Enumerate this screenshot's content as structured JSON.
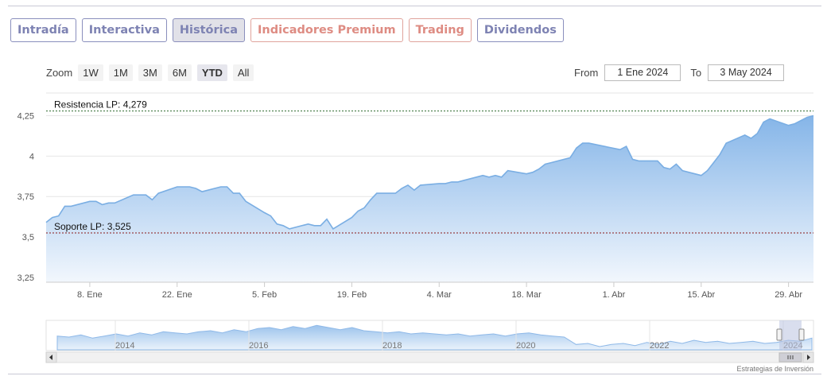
{
  "tabs": [
    {
      "label": "Intradía",
      "variant": "normal"
    },
    {
      "label": "Interactiva",
      "variant": "normal"
    },
    {
      "label": "Histórica",
      "variant": "active"
    },
    {
      "label": "Indicadores Premium",
      "variant": "premium"
    },
    {
      "label": "Trading",
      "variant": "premium"
    },
    {
      "label": "Dividendos",
      "variant": "normal"
    }
  ],
  "zoom": {
    "label": "Zoom",
    "buttons": [
      "1W",
      "1M",
      "3M",
      "6M",
      "YTD",
      "All"
    ],
    "selected": "YTD"
  },
  "range": {
    "from_label": "From",
    "from_value": "1 Ene 2024",
    "to_label": "To",
    "to_value": "3 May 2024"
  },
  "credit": "Estrategias de Inversión",
  "chart_data": {
    "type": "area",
    "ylim": [
      3.22,
      4.39
    ],
    "yticks": [
      {
        "v": 3.25,
        "label": "3,25"
      },
      {
        "v": 3.5,
        "label": "3,5"
      },
      {
        "v": 3.75,
        "label": "3,75"
      },
      {
        "v": 4,
        "label": "4"
      },
      {
        "v": 4.25,
        "label": "4,25"
      }
    ],
    "xlim": [
      "2024-01-01",
      "2024-05-03"
    ],
    "xticks": [
      {
        "date": "2024-01-08",
        "label": "8. Ene"
      },
      {
        "date": "2024-01-22",
        "label": "22. Ene"
      },
      {
        "date": "2024-02-05",
        "label": "5. Feb"
      },
      {
        "date": "2024-02-19",
        "label": "19. Feb"
      },
      {
        "date": "2024-03-04",
        "label": "4. Mar"
      },
      {
        "date": "2024-03-18",
        "label": "18. Mar"
      },
      {
        "date": "2024-04-01",
        "label": "1. Abr"
      },
      {
        "date": "2024-04-15",
        "label": "15. Abr"
      },
      {
        "date": "2024-04-29",
        "label": "29. Abr"
      }
    ],
    "annotations": [
      {
        "label": "Resistencia LP: 4,279",
        "value": 4.279
      },
      {
        "label": "Soporte LP: 3,525",
        "value": 3.525
      }
    ],
    "colors": {
      "line": "#7aaee3",
      "fill_top": "#85b5e8",
      "fill_bottom": "#f2f7fd",
      "resistance": "#2e6b2e",
      "support": "#8b1a1a"
    },
    "series": [
      {
        "x": [
          "2024-01-01",
          "2024-01-02",
          "2024-01-03",
          "2024-01-04",
          "2024-01-05",
          "2024-01-08",
          "2024-01-09",
          "2024-01-10",
          "2024-01-11",
          "2024-01-12",
          "2024-01-15",
          "2024-01-16",
          "2024-01-17",
          "2024-01-18",
          "2024-01-19",
          "2024-01-22",
          "2024-01-23",
          "2024-01-24",
          "2024-01-25",
          "2024-01-26",
          "2024-01-29",
          "2024-01-30",
          "2024-01-31",
          "2024-02-01",
          "2024-02-02",
          "2024-02-05",
          "2024-02-06",
          "2024-02-07",
          "2024-02-08",
          "2024-02-09",
          "2024-02-12",
          "2024-02-13",
          "2024-02-14",
          "2024-02-15",
          "2024-02-16",
          "2024-02-19",
          "2024-02-20",
          "2024-02-21",
          "2024-02-22",
          "2024-02-23",
          "2024-02-26",
          "2024-02-27",
          "2024-02-28",
          "2024-02-29",
          "2024-03-01",
          "2024-03-04",
          "2024-03-05",
          "2024-03-06",
          "2024-03-07",
          "2024-03-08",
          "2024-03-11",
          "2024-03-12",
          "2024-03-13",
          "2024-03-14",
          "2024-03-15",
          "2024-03-18",
          "2024-03-19",
          "2024-03-20",
          "2024-03-21",
          "2024-03-22",
          "2024-03-25",
          "2024-03-26",
          "2024-03-27",
          "2024-03-28",
          "2024-04-02",
          "2024-04-03",
          "2024-04-04",
          "2024-04-05",
          "2024-04-08",
          "2024-04-09",
          "2024-04-10",
          "2024-04-11",
          "2024-04-12",
          "2024-04-15",
          "2024-04-16",
          "2024-04-17",
          "2024-04-18",
          "2024-04-19",
          "2024-04-22",
          "2024-04-23",
          "2024-04-24",
          "2024-04-25",
          "2024-04-26",
          "2024-04-29",
          "2024-04-30",
          "2024-05-02",
          "2024-05-03"
        ],
        "y": [
          3.59,
          3.62,
          3.63,
          3.69,
          3.69,
          3.72,
          3.72,
          3.7,
          3.71,
          3.71,
          3.76,
          3.76,
          3.76,
          3.73,
          3.77,
          3.81,
          3.81,
          3.81,
          3.8,
          3.78,
          3.81,
          3.81,
          3.77,
          3.77,
          3.72,
          3.65,
          3.63,
          3.58,
          3.57,
          3.55,
          3.58,
          3.57,
          3.57,
          3.61,
          3.55,
          3.62,
          3.66,
          3.68,
          3.73,
          3.77,
          3.77,
          3.8,
          3.82,
          3.79,
          3.82,
          3.83,
          3.83,
          3.84,
          3.84,
          3.85,
          3.88,
          3.87,
          3.88,
          3.87,
          3.91,
          3.89,
          3.9,
          3.92,
          3.95,
          3.96,
          3.99,
          4.05,
          4.08,
          4.08,
          4.04,
          4.06,
          3.98,
          3.97,
          3.97,
          3.93,
          3.92,
          3.95,
          3.91,
          3.88,
          3.91,
          3.96,
          4.01,
          4.08,
          4.13,
          4.11,
          4.14,
          4.21,
          4.23,
          4.19,
          4.2,
          4.24,
          4.25
        ]
      }
    ]
  },
  "navigator": {
    "year_labels": [
      "2014",
      "2016",
      "2018",
      "2020",
      "2022",
      "2024"
    ],
    "values": [
      3.2,
      3.1,
      3.3,
      3.0,
      3.2,
      3.4,
      3.2,
      3.5,
      3.3,
      3.6,
      3.5,
      3.4,
      3.6,
      3.7,
      3.5,
      3.8,
      3.6,
      3.9,
      4.0,
      3.8,
      4.1,
      3.9,
      4.2,
      4.0,
      3.8,
      4.0,
      3.7,
      3.6,
      3.5,
      3.6,
      3.4,
      3.5,
      3.4,
      3.3,
      3.4,
      3.2,
      3.3,
      3.4,
      3.2,
      3.4,
      3.5,
      3.3,
      3.2,
      3.1,
      2.4,
      2.5,
      2.2,
      2.4,
      2.5,
      2.3,
      2.6,
      2.4,
      2.7,
      2.5,
      2.8,
      2.6,
      2.7,
      2.5,
      2.6,
      2.7,
      2.5,
      2.6,
      2.8,
      2.7,
      3.0
    ]
  }
}
